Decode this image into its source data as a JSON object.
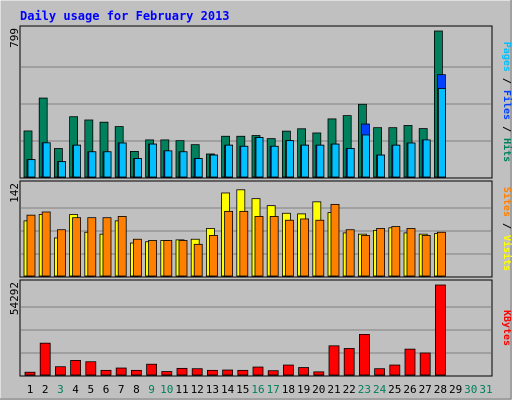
{
  "title": "Daily usage for February 2013",
  "colors": {
    "background": "#c0c0c0",
    "plot_background": "#c0c0c0",
    "title": "#0000ff",
    "hits": "#00805c",
    "files": "#0040ff",
    "pages": "#00c0ff",
    "visits": "#ffff00",
    "sites": "#ff8000",
    "kbytes": "#ff0000",
    "weekend_label": "#00805c",
    "weekday_label": "#000000"
  },
  "chart_data": [
    {
      "type": "bar",
      "panel": "top",
      "ymax_label": "799",
      "ylim": [
        0,
        799
      ],
      "legend": [
        {
          "text": "Pages",
          "color": "#00c0ff"
        },
        {
          "text": " / ",
          "color": "#000000"
        },
        {
          "text": "Files",
          "color": "#0040ff"
        },
        {
          "text": " / ",
          "color": "#000000"
        },
        {
          "text": "Hits",
          "color": "#00805c"
        }
      ],
      "categories": [
        "1",
        "2",
        "3",
        "4",
        "5",
        "6",
        "7",
        "8",
        "9",
        "10",
        "11",
        "12",
        "13",
        "14",
        "15",
        "16",
        "17",
        "18",
        "19",
        "20",
        "21",
        "22",
        "23",
        "24",
        "25",
        "26",
        "27",
        "28",
        "29",
        "30",
        "31"
      ],
      "series": [
        {
          "name": "Hits",
          "color": "#00805c",
          "values": [
            252,
            432,
            156,
            330,
            312,
            300,
            276,
            140,
            203,
            203,
            199,
            177,
            126,
            223,
            223,
            227,
            210,
            251,
            264,
            241,
            318,
            336,
            398,
            270,
            270,
            282,
            265,
            799,
            0,
            0,
            0
          ]
        },
        {
          "name": "Files",
          "color": "#0040ff",
          "values": [
            95,
            187,
            84,
            174,
            138,
            138,
            186,
            101,
            180,
            143,
            138,
            101,
            120,
            174,
            168,
            216,
            168,
            199,
            174,
            174,
            180,
            156,
            290,
            120,
            174,
            186,
            203,
            560,
            0,
            0,
            0
          ]
        },
        {
          "name": "Pages",
          "color": "#00c0ff",
          "values": [
            95,
            187,
            84,
            174,
            138,
            138,
            186,
            101,
            180,
            143,
            138,
            101,
            120,
            174,
            168,
            216,
            168,
            199,
            174,
            174,
            180,
            156,
            230,
            120,
            174,
            186,
            203,
            484,
            0,
            0,
            0
          ]
        }
      ]
    },
    {
      "type": "bar",
      "panel": "middle",
      "ymax_label": "142",
      "ylim": [
        0,
        142
      ],
      "legend": [
        {
          "text": "Sites",
          "color": "#ff8000"
        },
        {
          "text": " / ",
          "color": "#000000"
        },
        {
          "text": "Visits",
          "color": "#ffff00"
        }
      ],
      "categories": [
        "1",
        "2",
        "3",
        "4",
        "5",
        "6",
        "7",
        "8",
        "9",
        "10",
        "11",
        "12",
        "13",
        "14",
        "15",
        "16",
        "17",
        "18",
        "19",
        "20",
        "21",
        "22",
        "23",
        "24",
        "25",
        "26",
        "27",
        "28",
        "29",
        "30",
        "31"
      ],
      "series": [
        {
          "name": "Visits",
          "color": "#ffff00",
          "values": [
            87,
            97,
            60,
            97,
            69,
            66,
            87,
            52,
            54,
            56,
            57,
            58,
            75,
            131,
            136,
            122,
            111,
            99,
            98,
            117,
            100,
            68,
            66,
            72,
            76,
            68,
            66,
            67,
            0,
            0,
            0
          ]
        },
        {
          "name": "Sites",
          "color": "#ff8000",
          "values": [
            96,
            101,
            73,
            92,
            92,
            92,
            94,
            58,
            56,
            56,
            56,
            50,
            64,
            102,
            102,
            94,
            94,
            88,
            90,
            88,
            113,
            73,
            64,
            75,
            78,
            75,
            64,
            69,
            0,
            0,
            0
          ]
        }
      ]
    },
    {
      "type": "bar",
      "panel": "bottom",
      "ymax_label": "54292",
      "ylim": [
        0,
        54292
      ],
      "legend": [
        {
          "text": "KBytes",
          "color": "#ff0000"
        }
      ],
      "categories": [
        "1",
        "2",
        "3",
        "4",
        "5",
        "6",
        "7",
        "8",
        "9",
        "10",
        "11",
        "12",
        "13",
        "14",
        "15",
        "16",
        "17",
        "18",
        "19",
        "20",
        "21",
        "22",
        "23",
        "24",
        "25",
        "26",
        "27",
        "28",
        "29",
        "30",
        "31"
      ],
      "series": [
        {
          "name": "KBytes",
          "color": "#ff0000",
          "values": [
            1670,
            19200,
            5000,
            8800,
            8000,
            2800,
            4200,
            2800,
            6500,
            2100,
            4000,
            3800,
            2800,
            3000,
            2800,
            4800,
            2600,
            6000,
            4500,
            1900,
            17600,
            16000,
            24500,
            3800,
            6000,
            15600,
            13300,
            54292,
            0,
            0,
            0
          ]
        }
      ]
    }
  ],
  "x_labels": [
    {
      "label": "1",
      "weekend": false
    },
    {
      "label": "2",
      "weekend": false
    },
    {
      "label": "3",
      "weekend": true
    },
    {
      "label": "4",
      "weekend": false
    },
    {
      "label": "5",
      "weekend": false
    },
    {
      "label": "6",
      "weekend": false
    },
    {
      "label": "7",
      "weekend": false
    },
    {
      "label": "8",
      "weekend": false
    },
    {
      "label": "9",
      "weekend": true
    },
    {
      "label": "10",
      "weekend": true
    },
    {
      "label": "11",
      "weekend": false
    },
    {
      "label": "12",
      "weekend": false
    },
    {
      "label": "13",
      "weekend": false
    },
    {
      "label": "14",
      "weekend": false
    },
    {
      "label": "15",
      "weekend": false
    },
    {
      "label": "16",
      "weekend": true
    },
    {
      "label": "17",
      "weekend": true
    },
    {
      "label": "18",
      "weekend": false
    },
    {
      "label": "19",
      "weekend": false
    },
    {
      "label": "20",
      "weekend": false
    },
    {
      "label": "21",
      "weekend": false
    },
    {
      "label": "22",
      "weekend": false
    },
    {
      "label": "23",
      "weekend": true
    },
    {
      "label": "24",
      "weekend": true
    },
    {
      "label": "25",
      "weekend": false
    },
    {
      "label": "26",
      "weekend": false
    },
    {
      "label": "27",
      "weekend": false
    },
    {
      "label": "28",
      "weekend": false
    },
    {
      "label": "29",
      "weekend": false
    },
    {
      "label": "30",
      "weekend": true
    },
    {
      "label": "31",
      "weekend": true
    }
  ]
}
